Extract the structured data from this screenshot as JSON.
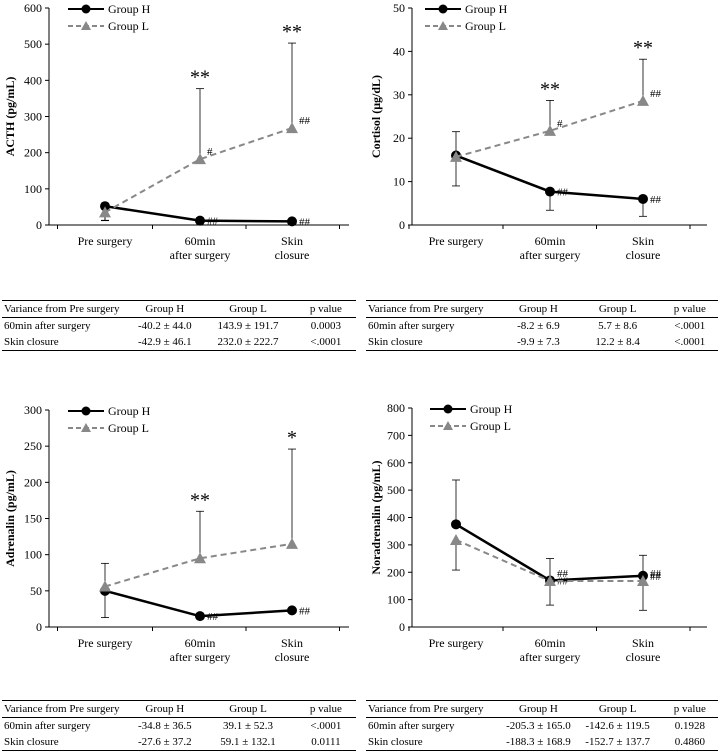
{
  "chart_data": [
    {
      "type": "line",
      "ylabel": "ACTH (pg/mL)",
      "ylim": [
        0,
        600
      ],
      "yticks": [
        0,
        100,
        200,
        300,
        400,
        500,
        600
      ],
      "categories": [
        "Pre surgery",
        "60min\nafter surgery",
        "Skin\nclosure"
      ],
      "legend": "top-left",
      "series": [
        {
          "name": "Group H",
          "values": [
            52,
            12,
            10
          ],
          "err_low": [
            40,
            0,
            0
          ],
          "err_high": [
            0,
            0,
            0
          ],
          "marker": "circle",
          "style": "solid",
          "color": "#000000",
          "annotations": [
            "",
            "##",
            "##"
          ]
        },
        {
          "name": "Group L",
          "values": [
            35,
            182,
            268
          ],
          "err_low": [
            22,
            0,
            0
          ],
          "err_high": [
            0,
            195,
            235
          ],
          "marker": "triangle",
          "style": "dashed",
          "color": "#888888",
          "annotations": [
            "",
            "#",
            "##"
          ]
        }
      ],
      "significance": [
        "",
        "**",
        "**"
      ],
      "table": {
        "header": [
          "Variance from Pre surgery",
          "Group H",
          "Group L",
          "p value"
        ],
        "rows": [
          [
            "60min after surgery",
            "-40.2 ± 44.0",
            "143.9 ± 191.7",
            "0.0003"
          ],
          [
            "Skin closure",
            "-42.9 ± 46.1",
            "232.0 ± 222.7",
            "<.0001"
          ]
        ]
      }
    },
    {
      "type": "line",
      "ylabel": "Cortisol (μg/dL)",
      "ylim": [
        0,
        50
      ],
      "yticks": [
        0,
        10,
        20,
        30,
        40,
        50
      ],
      "categories": [
        "Pre surgery",
        "60min\nafter surgery",
        "Skin\nclosure"
      ],
      "legend": "top-left",
      "series": [
        {
          "name": "Group H",
          "values": [
            16,
            7.7,
            6
          ],
          "err_low": [
            7,
            4.3,
            4
          ],
          "err_high": [
            0,
            0,
            0
          ],
          "marker": "circle",
          "style": "solid",
          "color": "#000000",
          "annotations": [
            "",
            "##",
            "##"
          ]
        },
        {
          "name": "Group L",
          "values": [
            15.7,
            21.7,
            28.6
          ],
          "err_low": [
            0,
            0,
            0
          ],
          "err_high": [
            5.8,
            7,
            9.6
          ],
          "marker": "triangle",
          "style": "dashed",
          "color": "#888888",
          "annotations": [
            "",
            "#",
            "##"
          ]
        }
      ],
      "significance": [
        "",
        "**",
        "**"
      ],
      "table": {
        "header": [
          "Variance from Pre surgery",
          "Group H",
          "Group L",
          "p value"
        ],
        "rows": [
          [
            "60min after surgery",
            "-8.2 ± 6.9",
            "5.7 ± 8.6",
            "<.0001"
          ],
          [
            "Skin closure",
            "-9.9 ± 7.3",
            "12.2 ± 8.4",
            "<.0001"
          ]
        ]
      }
    },
    {
      "type": "line",
      "ylabel": "Adrenalin (pg/mL)",
      "ylim": [
        0,
        300
      ],
      "yticks": [
        0,
        50,
        100,
        150,
        200,
        250,
        300
      ],
      "categories": [
        "Pre surgery",
        "60min\nafter surgery",
        "Skin\nclosure"
      ],
      "legend": "top-left",
      "series": [
        {
          "name": "Group H",
          "values": [
            50,
            15,
            23
          ],
          "err_low": [
            37,
            0,
            0
          ],
          "err_high": [
            0,
            0,
            0
          ],
          "marker": "circle",
          "style": "solid",
          "color": "#000000",
          "annotations": [
            "",
            "##",
            "##"
          ]
        },
        {
          "name": "Group L",
          "values": [
            56,
            95,
            115
          ],
          "err_low": [
            0,
            0,
            0
          ],
          "err_high": [
            32,
            65,
            131
          ],
          "marker": "triangle",
          "style": "dashed",
          "color": "#888888",
          "annotations": [
            "",
            "",
            ""
          ]
        }
      ],
      "significance": [
        "",
        "**",
        "*"
      ],
      "table": {
        "header": [
          "Variance from Pre surgery",
          "Group H",
          "Group L",
          "p value"
        ],
        "rows": [
          [
            "60min after surgery",
            "-34.8 ± 36.5",
            "39.1 ± 52.3",
            "<.0001"
          ],
          [
            "Skin closure",
            "-27.6 ± 37.2",
            "59.1 ± 132.1",
            "0.0111"
          ]
        ]
      }
    },
    {
      "type": "line",
      "ylabel": "Noradrenalin (pg/mL)",
      "ylim": [
        0,
        800
      ],
      "yticks": [
        0,
        100,
        200,
        300,
        400,
        500,
        600,
        700,
        800
      ],
      "categories": [
        "Pre surgery",
        "60min\nafter surgery",
        "Skin\nclosure"
      ],
      "legend": "top-left",
      "series": [
        {
          "name": "Group H",
          "values": [
            375,
            170,
            187
          ],
          "err_low": [
            0,
            0,
            0
          ],
          "err_high": [
            162,
            80,
            75
          ],
          "marker": "circle",
          "style": "solid",
          "color": "#000000",
          "annotations": [
            "",
            "##",
            "##"
          ]
        },
        {
          "name": "Group L",
          "values": [
            318,
            168,
            168
          ],
          "err_low": [
            110,
            88,
            107
          ],
          "err_high": [
            0,
            0,
            0
          ],
          "marker": "triangle",
          "style": "dashed",
          "color": "#888888",
          "annotations": [
            "",
            "##",
            "##"
          ]
        }
      ],
      "significance": [
        "",
        "",
        ""
      ],
      "table": {
        "header": [
          "Variance from Pre surgery",
          "Group H",
          "Group L",
          "p value"
        ],
        "rows": [
          [
            "60min after surgery",
            "-205.3 ± 165.0",
            "-142.6 ± 119.5",
            "0.1928"
          ],
          [
            "Skin closure",
            "-188.3 ± 168.9",
            "-152.7 ± 137.7",
            "0.4860"
          ]
        ]
      }
    }
  ]
}
